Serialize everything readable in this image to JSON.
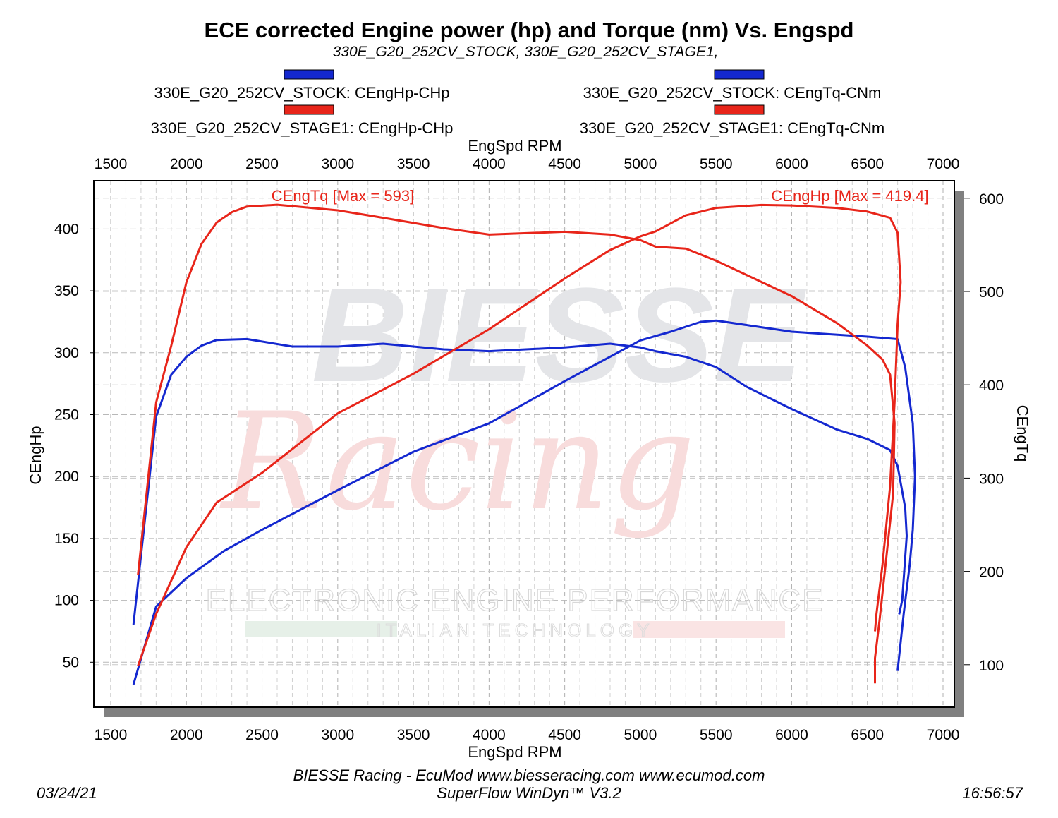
{
  "chart_data": {
    "type": "line",
    "title": "ECE corrected Engine power (hp) and Torque (nm) Vs. Engspd",
    "subtitle": "330E_G20_252CV_STOCK, 330E_G20_252CV_STAGE1,",
    "xlabel": "EngSpd RPM",
    "ylabel": "CEngHp",
    "y2label": "CEngTq",
    "xlim": [
      1500,
      7000
    ],
    "ylim": [
      18,
      442
    ],
    "y2lim": [
      0,
      610
    ],
    "xticks": [
      1500,
      2000,
      2500,
      3000,
      3500,
      4000,
      4500,
      5000,
      5500,
      6000,
      6500,
      7000
    ],
    "yticks": [
      50,
      100,
      150,
      200,
      250,
      300,
      350,
      400
    ],
    "y2ticks": [
      100,
      200,
      300,
      400,
      500,
      600
    ],
    "grid": true,
    "legend_position": "top",
    "annotations": [
      {
        "text": "CEngTq [Max = 593]",
        "color": "#e8251a"
      },
      {
        "text": "CEngHp [Max = 419.4]",
        "color": "#e8251a"
      }
    ],
    "series": [
      {
        "name": "330E_G20_252CV_STOCK: CEngHp-CHp",
        "axis": "left",
        "color": "#1428d0",
        "x": [
          1650,
          1800,
          2000,
          2250,
          2500,
          3000,
          3500,
          4000,
          4500,
          5000,
          5200,
          5400,
          5500,
          6000,
          6500,
          6700,
          6750,
          6800,
          6815,
          6800,
          6780,
          6740,
          6720,
          6700
        ],
        "y": [
          32,
          95,
          118,
          140,
          157,
          189,
          220,
          243,
          277,
          310,
          317,
          325,
          326,
          317,
          313,
          311,
          288,
          243,
          200,
          157,
          129,
          89,
          66,
          43
        ]
      },
      {
        "name": "330E_G20_252CV_STOCK: CEngTq-CNm",
        "axis": "right",
        "color": "#1428d0",
        "x": [
          1650,
          1800,
          1900,
          2000,
          2100,
          2200,
          2400,
          2700,
          3000,
          3300,
          3700,
          4000,
          4500,
          4800,
          5000,
          5100,
          5300,
          5500,
          5700,
          6000,
          6300,
          6500,
          6600,
          6650,
          6700,
          6750,
          6760,
          6730,
          6710
        ],
        "y": [
          143,
          366,
          411,
          430,
          442,
          448,
          449,
          441,
          441,
          444,
          438,
          436,
          440,
          444,
          440,
          436,
          430,
          419,
          398,
          374,
          352,
          342,
          334,
          330,
          313,
          268,
          238,
          169,
          154
        ]
      },
      {
        "name": "330E_G20_252CV_STAGE1: CEngHp-CHp",
        "axis": "left",
        "color": "#e8251a",
        "x": [
          1680,
          1800,
          2000,
          2200,
          2500,
          3000,
          3500,
          4000,
          4500,
          4800,
          5000,
          5100,
          5300,
          5500,
          5800,
          6000,
          6300,
          6500,
          6650,
          6700,
          6720,
          6700,
          6680,
          6650,
          6600,
          6560,
          6550
        ],
        "y": [
          47,
          89,
          143,
          179,
          203,
          251,
          283,
          319,
          360,
          383,
          394,
          398,
          411,
          417,
          419.4,
          419,
          417,
          414,
          409,
          397,
          357,
          323,
          260,
          192,
          129,
          89,
          75
        ]
      },
      {
        "name": "330E_G20_252CV_STAGE1: CEngTq-CNm",
        "axis": "right",
        "color": "#e8251a",
        "x": [
          1680,
          1800,
          1900,
          2000,
          2100,
          2200,
          2300,
          2400,
          2600,
          3000,
          3300,
          3700,
          4000,
          4500,
          4800,
          5000,
          5100,
          5300,
          5500,
          6000,
          6300,
          6500,
          6600,
          6650,
          6680,
          6670,
          6620,
          6580,
          6550,
          6550
        ],
        "y": [
          196,
          381,
          442,
          510,
          551,
          574,
          585,
          591,
          593,
          587,
          579,
          568,
          561,
          564,
          561,
          555,
          548,
          546,
          533,
          495,
          466,
          442,
          427,
          411,
          359,
          283,
          207,
          147,
          107,
          80
        ]
      }
    ]
  },
  "watermark": {
    "brand": "BIESSE",
    "script": "Racing",
    "line1": "ELECTRONIC ENGINE PERFORMANCE",
    "line2": "ITALIAN TECHNOLOGY"
  },
  "footer": {
    "credit": "BIESSE Racing - EcuMod www.biesseracing.com www.ecumod.com",
    "software": "SuperFlow WinDyn™ V3.2",
    "date": "03/24/21",
    "time": "16:56:57"
  }
}
